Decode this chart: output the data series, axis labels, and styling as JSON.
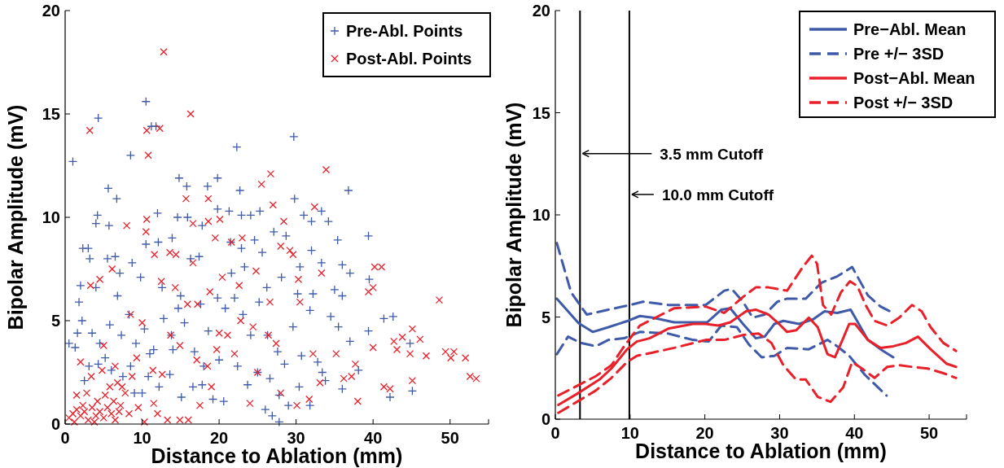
{
  "chart_data": [
    {
      "type": "scatter",
      "xlabel": "Distance to Ablation (mm)",
      "ylabel": "Bipolar Amplitude (mV)",
      "xlim": [
        0,
        55
      ],
      "xticks": [
        0,
        10,
        20,
        30,
        40,
        50
      ],
      "ylim": [
        0,
        20
      ],
      "yticks": [
        0,
        5,
        10,
        15,
        20
      ],
      "grid": false,
      "legend": "top right",
      "series": [
        {
          "name": "Pre-Abl. Points",
          "color": "#3f5aa8",
          "marker": "plus",
          "x": [
            0.5,
            1,
            1.3,
            4.3,
            8.5,
            10.5,
            11.2,
            11.8,
            22.3,
            29.7,
            36.8,
            39.4,
            45.1,
            42.6,
            41.4,
            42.2,
            44.8,
            39.4,
            27.8,
            26.9,
            5.6,
            6.7,
            14.8,
            15.8,
            18.5,
            19.8,
            22.7,
            29.8,
            4.2,
            4,
            5.7,
            12,
            14.6,
            15.9,
            21.3,
            22.9,
            24.1,
            25.3,
            31,
            33.3,
            32,
            34.2,
            35.4,
            36,
            37,
            39.5,
            35,
            36,
            34.5,
            35.5,
            37,
            38.1,
            36,
            3,
            2.3,
            3.2,
            2,
            1.8,
            2.2,
            1.6,
            4,
            5.5,
            6.5,
            7.1,
            8.7,
            10.5,
            12.1,
            13.9,
            16.3,
            17.4,
            17.8,
            21.5,
            22.9,
            24.6,
            27.1,
            28.7,
            30.5,
            32,
            33.3,
            3.5,
            4.5,
            5.2,
            6,
            7.3,
            8.3,
            9.2,
            10.3,
            11.5,
            12.8,
            13.8,
            14.7,
            15.5,
            16.8,
            17.6,
            18.6,
            19.8,
            20.8,
            22,
            23.1,
            24.1,
            25.2,
            26.3,
            27.6,
            28.5,
            29.6,
            30.7,
            31.8,
            32.8,
            33.8,
            7.5,
            9,
            10.8,
            12.2,
            13.6,
            15.1,
            16.6,
            17.8,
            19.2,
            20.6,
            22.4,
            23.7,
            25,
            26.6,
            27.8,
            29,
            30.4,
            31.8,
            33.4,
            26,
            20,
            18,
            14,
            11,
            8.5,
            5.8,
            4.3,
            3.1,
            2.5,
            6.8,
            9.8,
            12.6,
            15,
            21.6,
            23.3,
            26.2,
            28.1,
            30.2,
            32.2,
            25.6,
            19.8,
            10
          ],
          "values": [
            3.9,
            12.7,
            3.7,
            14.8,
            13,
            15.6,
            14.4,
            14.4,
            13.4,
            13.9,
            11.3,
            9.1,
            1.6,
            5.2,
            5.1,
            1.3,
            3.9,
            4.5,
            0.1,
            0.4,
            11.4,
            10.9,
            11.9,
            11.5,
            11.5,
            11.9,
            11.3,
            10.9,
            10.1,
            9.7,
            9.6,
            10.2,
            10,
            10,
            10.3,
            10.1,
            10.1,
            10.3,
            10.1,
            10.3,
            9.8,
            9.8,
            8.9,
            7.7,
            7.3,
            7,
            6.5,
            6.2,
            5.2,
            4.7,
            4,
            2.6,
            1.7,
            8.5,
            8.5,
            8,
            6.7,
            5.9,
            5,
            4.4,
            6.6,
            8,
            8.1,
            7.3,
            7.8,
            8.7,
            8.8,
            9,
            8,
            8.1,
            9.6,
            8.8,
            8.5,
            8.9,
            9.3,
            9.1,
            7.6,
            8.4,
            7.8,
            4.4,
            3.9,
            3.2,
            2.6,
            4.3,
            5.3,
            3.9,
            4.6,
            3.6,
            5.1,
            4.3,
            5.6,
            4.9,
            3.5,
            5.8,
            4.5,
            6.1,
            5.6,
            6.1,
            5.3,
            4.3,
            5.9,
            4.3,
            3.5,
            2.9,
            4.7,
            3.3,
            5.5,
            3,
            2.1,
            2.3,
            1.5,
            2.3,
            1.8,
            2.4,
            1.3,
            1.8,
            1.9,
            1.2,
            1.1,
            2.8,
            1.9,
            2.5,
            2.2,
            1.4,
            0.9,
            1.8,
            0.9,
            2.5,
            0.7,
            3.1,
            2.8,
            3.6,
            3.4,
            2.8,
            4.8,
            2.9,
            2.8,
            2.1,
            6.2,
            7.1,
            6.6,
            6.2,
            7.3,
            7.6,
            6.6,
            7.1,
            6.3,
            6.3,
            8.3,
            10.4,
            1.5
          ]
        },
        {
          "name": "Post-Abl. Points",
          "color": "#e8202a",
          "marker": "cross",
          "x": [
            12.8,
            16.3,
            3.2,
            10.6,
            12.3,
            10.8,
            26.7,
            33.9,
            25.5,
            15.7,
            18.6,
            27,
            32.4,
            10.6,
            8,
            10.5,
            16.6,
            18.6,
            20.1,
            19.5,
            28.4,
            28,
            29.2,
            29.6,
            30.3,
            33.3,
            40.2,
            41.1,
            39.4,
            40,
            48.6,
            40,
            42.7,
            43.1,
            43.8,
            45.1,
            44.8,
            46.1,
            46.9,
            49.4,
            50.1,
            50.5,
            52,
            52.6,
            53.4,
            45.1,
            41.4,
            42.2,
            38,
            37.7,
            36.2,
            37.2,
            35.2,
            33.1,
            31.7,
            30.1,
            28,
            27.4,
            26.4,
            24.4,
            22.8,
            21.1,
            19.7,
            18.5,
            17.1,
            15.9,
            14.9,
            13.7,
            12.6,
            11.4,
            10,
            9.3,
            8.7,
            13.6,
            14.4,
            11.6,
            12.5,
            17.2,
            18.8,
            20.4,
            22.6,
            24.8,
            26.6,
            23,
            21.6,
            6.1,
            4.5,
            3.3,
            8.5,
            12,
            13.3,
            14.9,
            16,
            10.3,
            11.5,
            9.5,
            2,
            1.5,
            2.8,
            5,
            6.5,
            7.4,
            4.2,
            5.2,
            6.3,
            7.2,
            8.3,
            0.5,
            1,
            1.5,
            2,
            2.5,
            3,
            3.5,
            4,
            4.5,
            5,
            5.5,
            6,
            6.5,
            7,
            1.2,
            2.3,
            3.8,
            5.8,
            6.8,
            7.8,
            3.4,
            4.8,
            25,
            32.2,
            30.5,
            16.6,
            14.3,
            20,
            22,
            24,
            19,
            17.5
          ],
          "values": [
            18,
            15,
            14.2,
            14.2,
            14.3,
            13,
            12.1,
            12.3,
            11.6,
            10.9,
            10.9,
            10.6,
            10.5,
            9.9,
            9.6,
            9.3,
            9.7,
            9.8,
            9.9,
            9,
            9.8,
            8.6,
            8.4,
            8.2,
            7,
            7.3,
            7.6,
            7.6,
            6.4,
            6.6,
            6,
            3.7,
            4,
            3.6,
            4.2,
            4.6,
            3.4,
            4.1,
            3.3,
            3.5,
            3.2,
            3.5,
            3.2,
            2.3,
            2.2,
            2.1,
            1.8,
            1.7,
            1.1,
            2.9,
            2.2,
            2.3,
            3.4,
            2,
            1.2,
            0.9,
            1.5,
            3.9,
            4.3,
            4.7,
            5,
            4.3,
            3.6,
            2.8,
            3.1,
            5.8,
            3.8,
            4.3,
            2.4,
            2.6,
            4.9,
            3.2,
            2.3,
            8.3,
            8.2,
            8.2,
            6.9,
            5.8,
            6.4,
            7.1,
            6.7,
            7.4,
            5.9,
            9,
            8.8,
            7.5,
            7,
            6.7,
            5.3,
            0.5,
            0.2,
            0.2,
            0.2,
            0.1,
            1,
            0.8,
            3,
            1.4,
            1.5,
            3.8,
            2.8,
            1.8,
            1.1,
            1.4,
            1.1,
            0.9,
            0.5,
            0.3,
            0.5,
            0.7,
            0.4,
            0.6,
            0.2,
            0.8,
            0.4,
            0.6,
            0.3,
            0.8,
            0.5,
            0.2,
            0.6,
            0.1,
            0.9,
            0.1,
            1.8,
            2,
            1.5,
            2.3,
            2.6,
            2.5,
            3.4,
            5.9,
            7.8,
            6.6,
            4.4,
            3.4,
            1,
            1.8,
            0.9
          ]
        }
      ]
    },
    {
      "type": "line",
      "xlabel": "Distance to Ablation (mm)",
      "ylabel": "Bipolar Amplitude (mV)",
      "xlim": [
        0,
        55
      ],
      "xticks": [
        0,
        10,
        20,
        30,
        40,
        50
      ],
      "ylim": [
        0,
        20
      ],
      "yticks": [
        0,
        5,
        10,
        15,
        20
      ],
      "grid": false,
      "legend": "top right",
      "marker": "none",
      "ref_lines": [
        {
          "axis": "x",
          "value": 3.3,
          "color": "#000000"
        },
        {
          "axis": "x",
          "value": 9.9,
          "color": "#000000"
        }
      ],
      "annotations": [
        {
          "text": "3.5 mm Cutoff",
          "x": 3.3,
          "y": 13
        },
        {
          "text": "10.0 mm Cutoff",
          "x": 9.9,
          "y": 11
        }
      ],
      "series": [
        {
          "name": "Pre−Abl. Mean",
          "color": "#3f5aa8",
          "line_style": "solid",
          "x": [
            0.2,
            3.1,
            5,
            7.1,
            9.6,
            11.3,
            13,
            15.9,
            20.3,
            22.2,
            23.4,
            25.1,
            26.8,
            28,
            29.3,
            30.5,
            32.6,
            34.5,
            36,
            37.7,
            39.5,
            41.8,
            43.5,
            45.2
          ],
          "values": [
            5.9,
            4.7,
            4.27,
            4.5,
            4.8,
            5.05,
            4.97,
            4.74,
            4.74,
            5.36,
            5.43,
            4.66,
            3.96,
            4.04,
            4.66,
            4.81,
            4.66,
            4.89,
            5.28,
            5.2,
            5.36,
            3.88,
            3.42,
            3.03
          ]
        },
        {
          "name": "Pre +/− 3SD",
          "color": "#3f5aa8",
          "line_style": "dashed",
          "x": [
            0.2,
            2.1,
            4.2,
            7.1,
            10,
            11.7,
            15.1,
            20.1,
            22.6,
            23.6,
            25.1,
            26.4,
            28,
            29.7,
            31,
            33.5,
            35.6,
            37.7,
            39.7,
            41.8,
            43.5,
            45.2
          ],
          "values": [
            8.62,
            6.21,
            5.12,
            5.36,
            5.59,
            5.75,
            5.59,
            5.59,
            6.29,
            6.37,
            5.75,
            4.97,
            5.12,
            5.75,
            5.9,
            5.9,
            6.68,
            6.99,
            7.45,
            6.06,
            5.51,
            5.2
          ]
        },
        {
          "color": "#3f5aa8",
          "line_style": "dashed",
          "x": [
            0.2,
            1.7,
            3.4,
            5.4,
            7.1,
            9.2,
            11.3,
            15.1,
            18.4,
            20.5,
            22.2,
            24.3,
            25.9,
            27.6,
            29.3,
            31,
            33.9,
            36.4,
            37.7,
            39.3,
            41.4,
            44.3
          ],
          "values": [
            3.18,
            4.04,
            3.73,
            3.57,
            3.88,
            3.96,
            4.27,
            4.19,
            3.88,
            3.8,
            4.58,
            4.5,
            3.65,
            3.03,
            3.1,
            3.49,
            3.42,
            3.88,
            3.57,
            3.1,
            2.17,
            1.16
          ]
        },
        {
          "name": "Post−Abl. Mean",
          "color": "#e8202a",
          "line_style": "solid",
          "x": [
            0.4,
            2.9,
            5.9,
            7.5,
            9.6,
            10.9,
            12.6,
            15.1,
            18.4,
            20.1,
            21.8,
            23.4,
            25.5,
            26.8,
            28.5,
            29.7,
            31,
            32.2,
            33.9,
            35.1,
            36.4,
            37.4,
            38.5,
            39.3,
            40.1,
            41.8,
            43.5,
            45.2,
            46.9,
            48.5,
            50.2,
            52.3,
            53.6
          ],
          "values": [
            0.7,
            1.24,
            1.94,
            2.48,
            3.42,
            3.8,
            3.96,
            4.43,
            4.66,
            4.66,
            4.58,
            4.74,
            5.28,
            5.36,
            5.12,
            4.74,
            4.27,
            4.35,
            4.97,
            4.5,
            3.18,
            3.03,
            3.96,
            4.66,
            4.66,
            3.88,
            3.49,
            3.57,
            3.73,
            4.04,
            3.42,
            2.72,
            2.56
          ]
        },
        {
          "name": "Post +/− 3SD",
          "color": "#e8202a",
          "line_style": "dashed",
          "x": [
            0.4,
            2.9,
            5.4,
            7.5,
            9.2,
            11.3,
            13.4,
            15.9,
            20.1,
            22.6,
            25.1,
            26.8,
            28.5,
            31,
            33.1,
            34.3,
            35,
            35.8,
            36.9,
            38.2,
            39.4,
            40.4,
            41.5,
            42.7,
            44.4,
            46,
            47.7,
            49,
            50.2,
            51.9,
            53.6
          ],
          "values": [
            1.16,
            1.63,
            2.1,
            2.64,
            3.57,
            4.58,
            4.97,
            5.43,
            5.51,
            5.2,
            5.98,
            6.45,
            6.45,
            6.29,
            7.45,
            8,
            7.61,
            5.59,
            5.12,
            6.21,
            6.75,
            6.52,
            5.59,
            4.81,
            4.58,
            4.97,
            5.59,
            5.28,
            4.5,
            3.73,
            3.34
          ]
        },
        {
          "color": "#e8202a",
          "line_style": "dashed",
          "x": [
            0.4,
            2.9,
            5.4,
            7.5,
            9.6,
            10.9,
            13,
            15.9,
            20.1,
            22.6,
            25.1,
            27.2,
            28.9,
            30.5,
            32.2,
            33.5,
            35.1,
            36.8,
            38.5,
            39.7,
            41,
            42.7,
            44.4,
            46,
            47.7,
            49.8,
            51.9,
            53.6
          ],
          "values": [
            0.31,
            0.85,
            1.4,
            2.02,
            2.8,
            3.1,
            3.26,
            3.49,
            3.88,
            3.88,
            4.12,
            4.19,
            3.73,
            2.64,
            1.94,
            1.94,
            1.09,
            0.85,
            1.55,
            2.8,
            2.48,
            2.02,
            2.56,
            2.64,
            2.56,
            2.48,
            2.25,
            2.02
          ]
        }
      ]
    }
  ]
}
